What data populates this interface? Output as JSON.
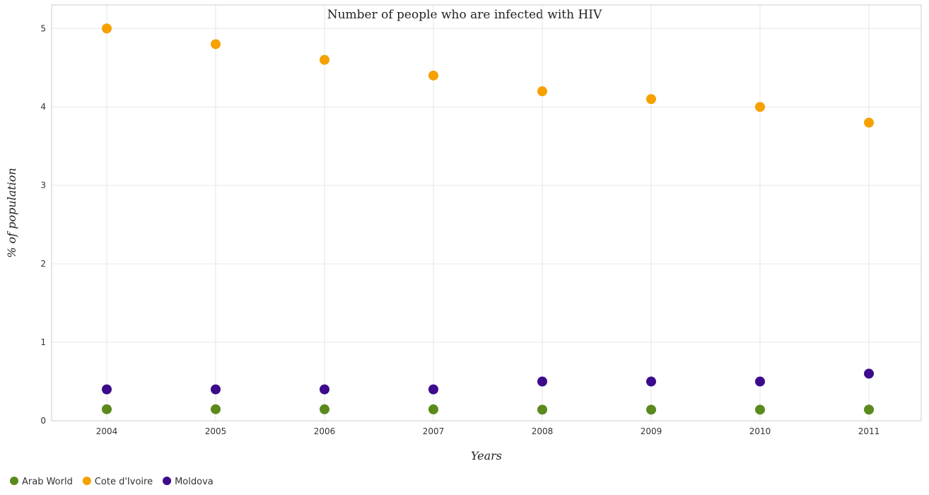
{
  "colors": {
    "Arab World": "#5a8a1c",
    "Cote d'Ivoire": "#f5a100",
    "Moldova": "#3d0a8c"
  },
  "chart_data": {
    "type": "scatter",
    "title": "Number of people who are infected with HIV",
    "xlabel": "Years",
    "ylabel": "% of population",
    "x": [
      "2004",
      "2005",
      "2006",
      "2007",
      "2008",
      "2009",
      "2010",
      "2011"
    ],
    "ylim": [
      0,
      5.3
    ],
    "yticks": [
      "0",
      "1",
      "2",
      "3",
      "4",
      "5"
    ],
    "grid": true,
    "legend_position": "bottom-left",
    "series": [
      {
        "name": "Arab World",
        "values": [
          0.147,
          0.147,
          0.146,
          0.145,
          0.141,
          0.141,
          0.141,
          0.142
        ]
      },
      {
        "name": "Cote d'Ivoire",
        "values": [
          5.0,
          4.8,
          4.6,
          4.4,
          4.2,
          4.1,
          4.0,
          3.8
        ]
      },
      {
        "name": "Moldova",
        "values": [
          0.4,
          0.4,
          0.4,
          0.4,
          0.5,
          0.5,
          0.5,
          0.6
        ]
      }
    ]
  }
}
